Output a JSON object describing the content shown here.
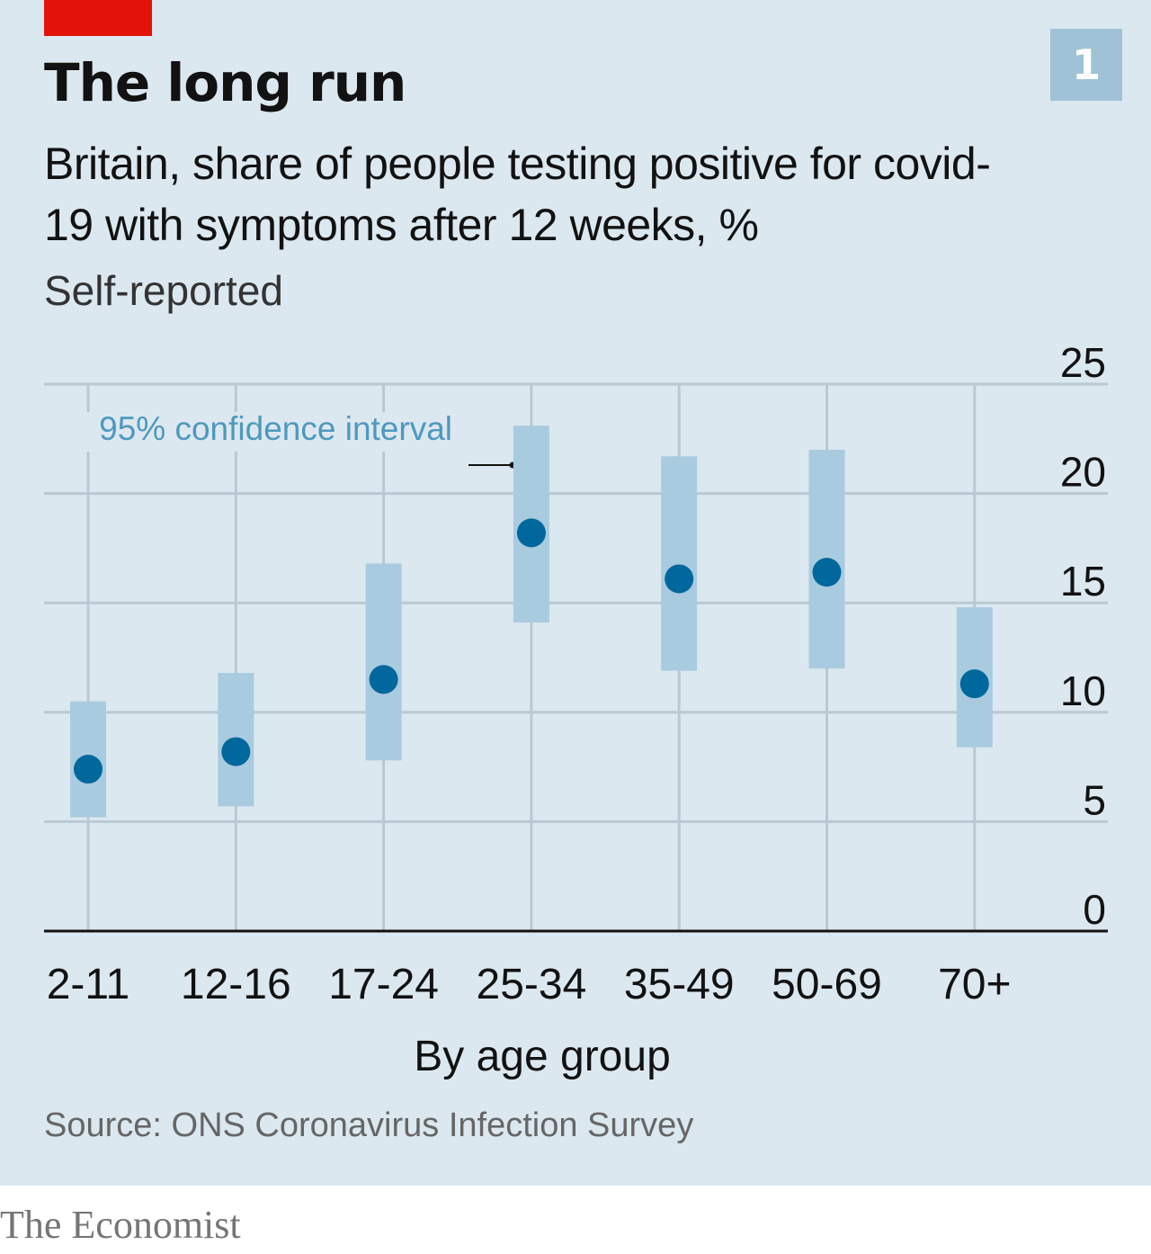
{
  "header": {
    "badge": "1",
    "title": "The long run",
    "subtitle": "Britain, share of people testing positive for covid-19 with symptoms after 12 weeks, %",
    "note": "Self-reported"
  },
  "chart_data": {
    "type": "scatter",
    "categories": [
      "2-11",
      "12-16",
      "17-24",
      "25-34",
      "35-49",
      "50-69",
      "70+"
    ],
    "values": [
      7.4,
      8.2,
      11.5,
      18.2,
      16.1,
      16.4,
      11.3
    ],
    "ci_low": [
      5.2,
      5.7,
      7.8,
      14.1,
      11.9,
      12.0,
      8.4
    ],
    "ci_high": [
      10.5,
      11.8,
      16.8,
      23.1,
      21.7,
      22.0,
      14.8
    ],
    "xlabel": "By age group",
    "ylabel": "",
    "yticks": [
      0,
      5,
      10,
      15,
      20,
      25
    ],
    "ylim": [
      0,
      25
    ],
    "grid": true,
    "y_axis_side": "right",
    "annotation": "95% confidence interval",
    "colors": {
      "point": "#00689d",
      "interval": "#a9cbdf",
      "grid": "#b9c9d3",
      "axis": "#121212",
      "annotation": "#4f98bf"
    }
  },
  "footer": {
    "source": "Source: ONS Coronavirus Infection Survey",
    "brand": "The Economist"
  }
}
